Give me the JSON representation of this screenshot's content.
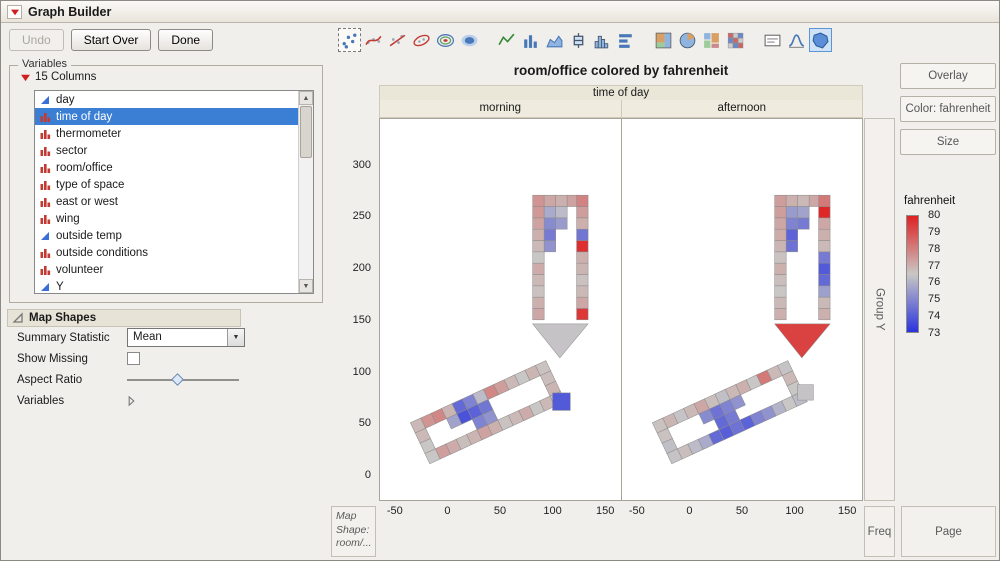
{
  "titlebar": {
    "title": "Graph Builder"
  },
  "toolbar": {
    "undo_label": "Undo",
    "start_over_label": "Start Over",
    "done_label": "Done",
    "element_groups": [
      [
        {
          "name": "points",
          "state": "dashed"
        },
        {
          "name": "smoother",
          "state": "normal"
        },
        {
          "name": "line-of-fit",
          "state": "normal"
        },
        {
          "name": "ellipse",
          "state": "normal"
        },
        {
          "name": "contour",
          "state": "normal"
        },
        {
          "name": "density",
          "state": "normal"
        }
      ],
      [
        {
          "name": "line",
          "state": "normal"
        },
        {
          "name": "bar",
          "state": "normal"
        },
        {
          "name": "area",
          "state": "normal"
        },
        {
          "name": "box-plot",
          "state": "normal"
        },
        {
          "name": "histogram",
          "state": "normal"
        },
        {
          "name": "bar-h",
          "state": "normal"
        }
      ],
      [
        {
          "name": "treemap",
          "state": "normal"
        },
        {
          "name": "pie",
          "state": "normal"
        },
        {
          "name": "mosaic",
          "state": "normal"
        },
        {
          "name": "heatmap",
          "state": "normal"
        }
      ],
      [
        {
          "name": "caption-box",
          "state": "normal"
        },
        {
          "name": "formula",
          "state": "normal"
        },
        {
          "name": "map-shapes",
          "state": "selected"
        }
      ]
    ]
  },
  "variables_panel": {
    "title": "Variables",
    "columns_label": "15 Columns",
    "items": [
      {
        "label": "day",
        "type": "continuous",
        "selected": false
      },
      {
        "label": "time of day",
        "type": "nominal",
        "selected": true
      },
      {
        "label": "thermometer",
        "type": "nominal",
        "selected": false
      },
      {
        "label": "sector",
        "type": "nominal",
        "selected": false
      },
      {
        "label": "room/office",
        "type": "nominal",
        "selected": false
      },
      {
        "label": "type of space",
        "type": "nominal",
        "selected": false
      },
      {
        "label": "east or west",
        "type": "nominal",
        "selected": false
      },
      {
        "label": "wing",
        "type": "nominal",
        "selected": false
      },
      {
        "label": "outside temp",
        "type": "continuous",
        "selected": false
      },
      {
        "label": "outside conditions",
        "type": "nominal",
        "selected": false
      },
      {
        "label": "volunteer",
        "type": "nominal",
        "selected": false
      },
      {
        "label": "Y",
        "type": "continuous",
        "selected": false
      }
    ]
  },
  "map_shapes_panel": {
    "title": "Map Shapes",
    "summary_statistic_label": "Summary Statistic",
    "summary_statistic_value": "Mean",
    "show_missing_label": "Show Missing",
    "show_missing_checked": false,
    "aspect_ratio_label": "Aspect Ratio",
    "variables_label": "Variables"
  },
  "chart": {
    "title": "room/office colored by fahrenheit",
    "group_x_label": "time of day",
    "panel_levels": [
      "morning",
      "afternoon"
    ],
    "y_ticks": [
      0,
      50,
      100,
      150,
      200,
      250,
      300
    ],
    "x_ticks": [
      -50,
      0,
      50,
      100,
      150
    ],
    "group_y_label": "Group Y",
    "map_shape_zone_label": "Map Shape: room/...",
    "freq_zone_label": "Freq",
    "page_zone_label": "Page"
  },
  "right_panel": {
    "overlay_label": "Overlay",
    "color_label": "Color: fahrenheit",
    "size_label": "Size"
  },
  "legend": {
    "title": "fahrenheit",
    "labels": [
      80,
      79,
      78,
      77,
      76,
      75,
      74,
      73
    ],
    "top_color": "#de2222",
    "mid_color": "#c9c7c5",
    "bottom_color": "#2a33de"
  },
  "map": {
    "cell_size": 11,
    "value_domain": [
      73,
      76.5,
      80
    ],
    "triangle_points": [
      [
        81,
        146
      ],
      [
        134,
        146
      ],
      [
        107,
        113
      ]
    ],
    "diag_translate": [
      -36,
      50
    ],
    "diag_rotate": -25,
    "panels": [
      {
        "level": "morning",
        "cells": [
          [
            81,
            150,
            77.2
          ],
          [
            81,
            161,
            77.0
          ],
          [
            81,
            172,
            76.6
          ],
          [
            81,
            183,
            76.8
          ],
          [
            81,
            194,
            77.1
          ],
          [
            81,
            205,
            76.5
          ],
          [
            81,
            216,
            76.8
          ],
          [
            81,
            227,
            77.0
          ],
          [
            81,
            238,
            77.3
          ],
          [
            81,
            249,
            77.5
          ],
          [
            123,
            150,
            79.6
          ],
          [
            123,
            161,
            77.2
          ],
          [
            123,
            172,
            76.8
          ],
          [
            123,
            183,
            76.6
          ],
          [
            123,
            194,
            76.9
          ],
          [
            123,
            205,
            77.0
          ],
          [
            123,
            216,
            79.8
          ],
          [
            123,
            227,
            74.5
          ],
          [
            123,
            238,
            77.0
          ],
          [
            123,
            249,
            77.4
          ],
          [
            81,
            260,
            77.6
          ],
          [
            92,
            260,
            77.2
          ],
          [
            103,
            260,
            77.0
          ],
          [
            114,
            260,
            77.3
          ],
          [
            123,
            260,
            78.0
          ],
          [
            92,
            216,
            75.2
          ],
          [
            92,
            227,
            74.6
          ],
          [
            92,
            238,
            75.0
          ],
          [
            92,
            249,
            75.8
          ],
          [
            103,
            238,
            75.4
          ],
          [
            103,
            249,
            76.2
          ]
        ],
        "triangle_value": 76.4,
        "diag_cells": [
          [
            0,
            0,
            76.8
          ],
          [
            11,
            0,
            77.6
          ],
          [
            22,
            0,
            77.9
          ],
          [
            33,
            0,
            76.9
          ],
          [
            44,
            0,
            74.2
          ],
          [
            55,
            0,
            74.8
          ],
          [
            66,
            0,
            76.2
          ],
          [
            77,
            0,
            77.9
          ],
          [
            88,
            0,
            77.4
          ],
          [
            99,
            0,
            76.8
          ],
          [
            110,
            0,
            76.5
          ],
          [
            121,
            0,
            76.9
          ],
          [
            132,
            0,
            76.6
          ],
          [
            0,
            33,
            76.5
          ],
          [
            11,
            33,
            77.4
          ],
          [
            22,
            33,
            77.1
          ],
          [
            33,
            33,
            76.7
          ],
          [
            44,
            33,
            76.9
          ],
          [
            55,
            33,
            77.3
          ],
          [
            66,
            33,
            77.0
          ],
          [
            77,
            33,
            76.6
          ],
          [
            88,
            33,
            76.8
          ],
          [
            99,
            33,
            77.1
          ],
          [
            110,
            33,
            76.5
          ],
          [
            121,
            33,
            76.8
          ],
          [
            132,
            33,
            76.4
          ],
          [
            0,
            11,
            76.8
          ],
          [
            0,
            22,
            76.5
          ],
          [
            132,
            11,
            76.7
          ],
          [
            132,
            22,
            76.9
          ],
          [
            33,
            11,
            75.6
          ],
          [
            44,
            11,
            73.6
          ],
          [
            55,
            11,
            74.0
          ],
          [
            66,
            11,
            74.5
          ],
          [
            55,
            22,
            74.8
          ],
          [
            66,
            22,
            75.2
          ]
        ],
        "annex": [
          100,
          62,
          17,
          73.8
        ]
      },
      {
        "level": "afternoon",
        "cells": [
          [
            81,
            150,
            77.0
          ],
          [
            81,
            161,
            76.8
          ],
          [
            81,
            172,
            76.5
          ],
          [
            81,
            183,
            76.7
          ],
          [
            81,
            194,
            77.0
          ],
          [
            81,
            205,
            76.6
          ],
          [
            81,
            216,
            76.9
          ],
          [
            81,
            227,
            77.1
          ],
          [
            81,
            238,
            77.2
          ],
          [
            81,
            249,
            77.4
          ],
          [
            123,
            150,
            77.0
          ],
          [
            123,
            161,
            76.8
          ],
          [
            123,
            172,
            75.5
          ],
          [
            123,
            183,
            74.2
          ],
          [
            123,
            194,
            73.8
          ],
          [
            123,
            205,
            74.6
          ],
          [
            123,
            216,
            76.8
          ],
          [
            123,
            227,
            77.0
          ],
          [
            123,
            238,
            77.2
          ],
          [
            123,
            249,
            80.0
          ],
          [
            81,
            260,
            77.4
          ],
          [
            92,
            260,
            77.0
          ],
          [
            103,
            260,
            76.8
          ],
          [
            114,
            260,
            77.2
          ],
          [
            123,
            260,
            78.2
          ],
          [
            92,
            216,
            74.4
          ],
          [
            92,
            227,
            74.0
          ],
          [
            92,
            238,
            74.8
          ],
          [
            92,
            249,
            75.4
          ],
          [
            103,
            238,
            74.6
          ],
          [
            103,
            249,
            75.6
          ]
        ],
        "triangle_value": 79.4,
        "diag_cells": [
          [
            0,
            0,
            76.6
          ],
          [
            11,
            0,
            76.9
          ],
          [
            22,
            0,
            76.4
          ],
          [
            33,
            0,
            76.8
          ],
          [
            44,
            0,
            77.2
          ],
          [
            55,
            0,
            76.7
          ],
          [
            66,
            0,
            76.3
          ],
          [
            77,
            0,
            76.8
          ],
          [
            88,
            0,
            77.0
          ],
          [
            99,
            0,
            76.5
          ],
          [
            110,
            0,
            78.2
          ],
          [
            121,
            0,
            76.8
          ],
          [
            132,
            0,
            76.4
          ],
          [
            0,
            33,
            76.4
          ],
          [
            11,
            33,
            76.7
          ],
          [
            22,
            33,
            76.2
          ],
          [
            33,
            33,
            75.8
          ],
          [
            44,
            33,
            74.2
          ],
          [
            55,
            33,
            73.9
          ],
          [
            66,
            33,
            74.4
          ],
          [
            77,
            33,
            74.0
          ],
          [
            88,
            33,
            74.8
          ],
          [
            99,
            33,
            75.2
          ],
          [
            110,
            33,
            76.0
          ],
          [
            121,
            33,
            76.5
          ],
          [
            132,
            33,
            76.2
          ],
          [
            0,
            11,
            76.6
          ],
          [
            0,
            22,
            76.3
          ],
          [
            132,
            11,
            76.8
          ],
          [
            132,
            22,
            76.5
          ],
          [
            44,
            11,
            75.0
          ],
          [
            55,
            11,
            74.4
          ],
          [
            66,
            11,
            74.8
          ],
          [
            77,
            11,
            75.2
          ],
          [
            55,
            22,
            74.2
          ],
          [
            66,
            22,
            74.6
          ]
        ],
        "annex": [
          103,
          72,
          15,
          76.4
        ]
      }
    ]
  }
}
